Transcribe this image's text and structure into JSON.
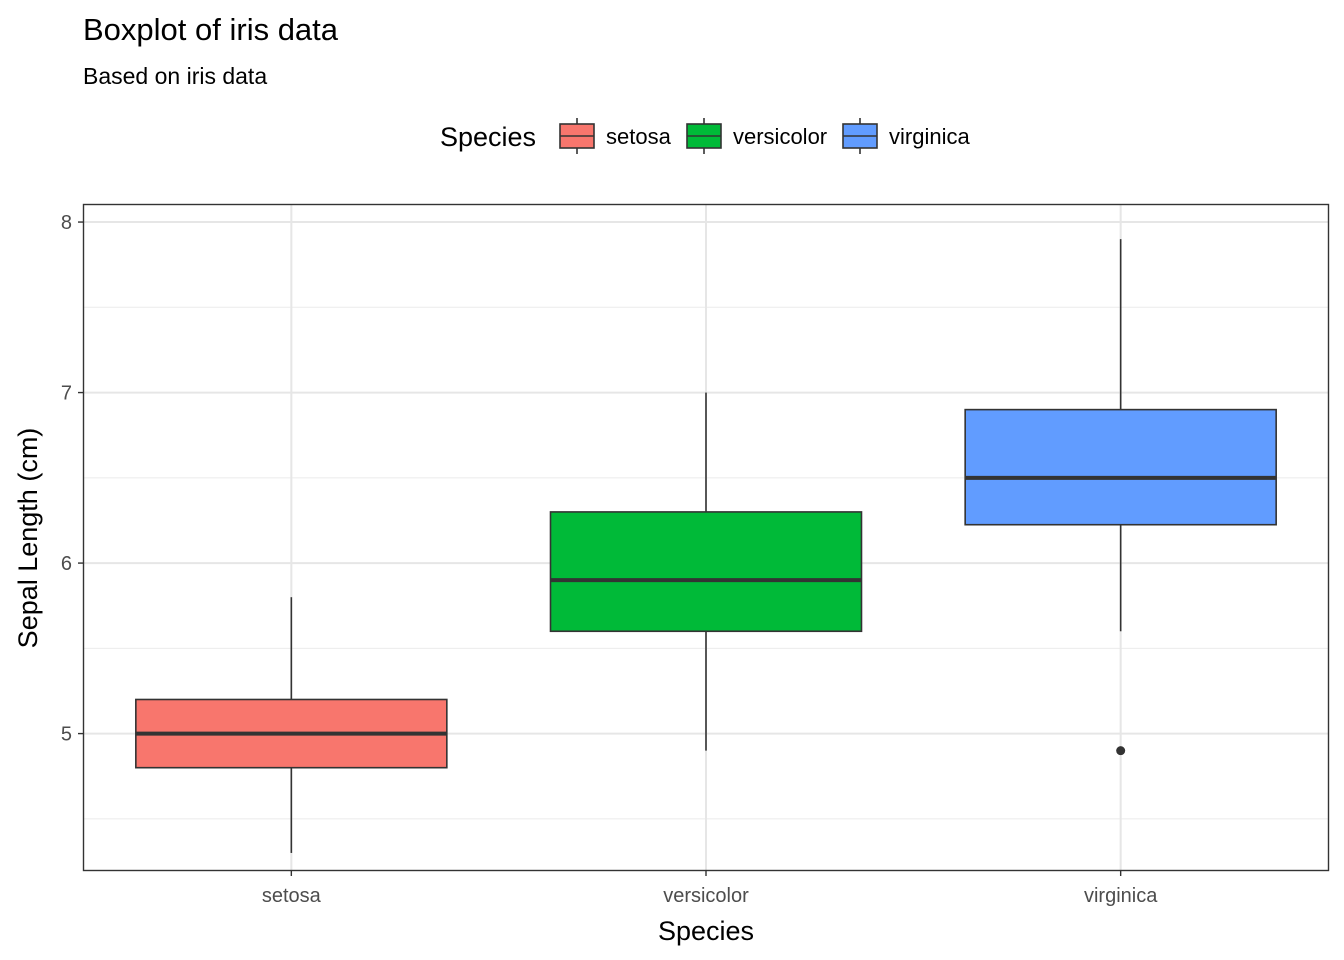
{
  "chart_data": {
    "type": "boxplot",
    "title": "Boxplot of iris data",
    "subtitle": "Based on iris data",
    "xlabel": "Species",
    "ylabel": "Sepal Length (cm)",
    "ylim": [
      4.2,
      8.1
    ],
    "yticks": [
      5,
      6,
      7,
      8
    ],
    "grid": true,
    "legend": {
      "title": "Species",
      "position": "top",
      "entries": [
        "setosa",
        "versicolor",
        "virginica"
      ]
    },
    "categories": [
      "setosa",
      "versicolor",
      "virginica"
    ],
    "colors": [
      "#F8766D",
      "#00BA38",
      "#619CFF"
    ],
    "boxes": [
      {
        "name": "setosa",
        "whisker_low": 4.3,
        "q1": 4.8,
        "median": 5.0,
        "q3": 5.2,
        "whisker_high": 5.8,
        "outliers": []
      },
      {
        "name": "versicolor",
        "whisker_low": 4.9,
        "q1": 5.6,
        "median": 5.9,
        "q3": 6.3,
        "whisker_high": 7.0,
        "outliers": []
      },
      {
        "name": "virginica",
        "whisker_low": 5.6,
        "q1": 6.225,
        "median": 6.5,
        "q3": 6.9,
        "whisker_high": 7.9,
        "outliers": [
          4.9
        ]
      }
    ]
  }
}
